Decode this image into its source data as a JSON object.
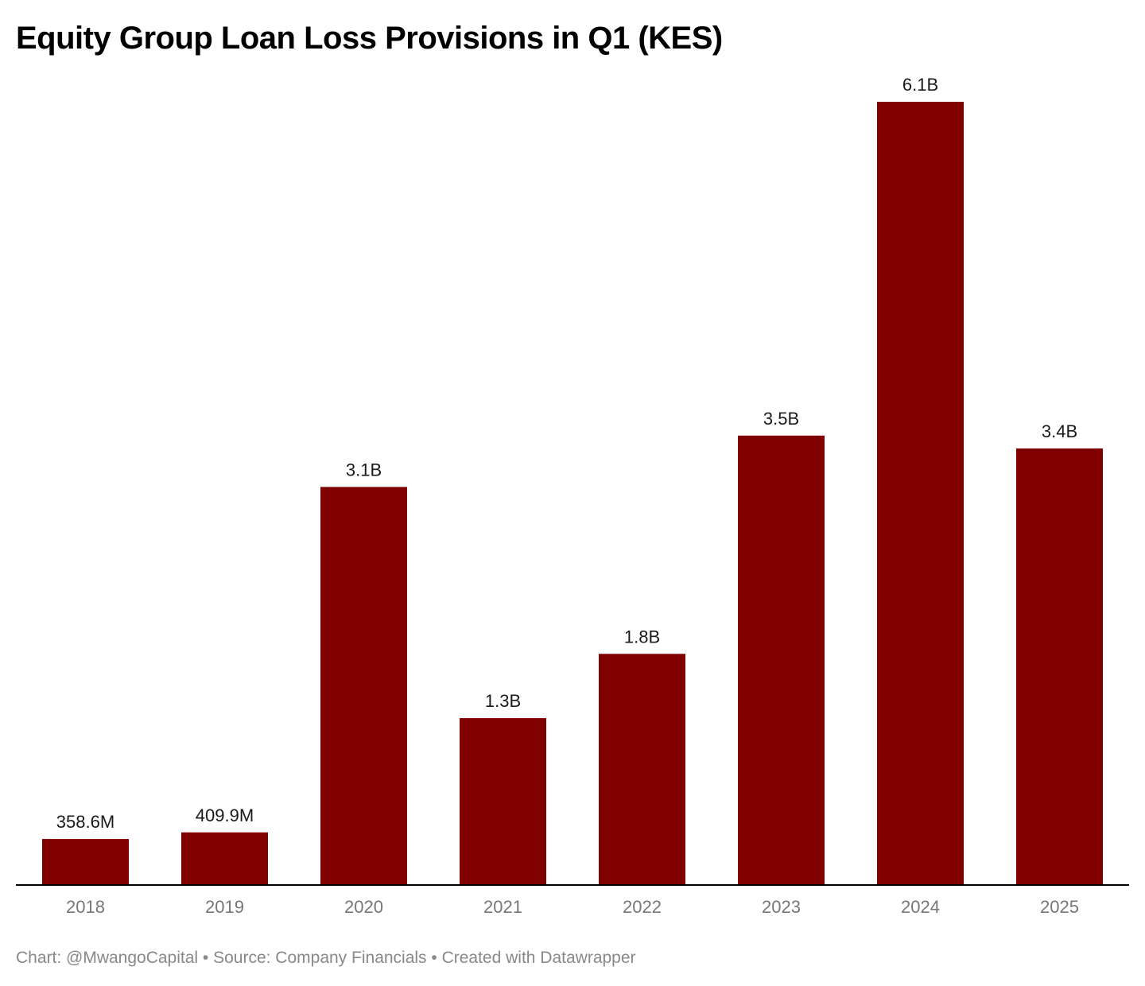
{
  "chart_data": {
    "type": "bar",
    "title": "Equity Group Loan Loss Provisions in Q1 (KES)",
    "categories": [
      "2018",
      "2019",
      "2020",
      "2021",
      "2022",
      "2023",
      "2024",
      "2025"
    ],
    "values": [
      0.3586,
      0.4099,
      3.1,
      1.3,
      1.8,
      3.5,
      6.1,
      3.4
    ],
    "data_labels": [
      "358.6M",
      "409.9M",
      "3.1B",
      "1.3B",
      "1.8B",
      "3.5B",
      "6.1B",
      "3.4B"
    ],
    "unit": "KES billions",
    "ylim": [
      0,
      6.1
    ],
    "xlabel": "",
    "ylabel": "",
    "grid": false,
    "legend": "none",
    "bar_color": "#800000",
    "baseline_color": "#000000"
  },
  "footer": {
    "credit": "Chart: @MwangoCapital • Source: Company Financials • Created with Datawrapper"
  }
}
